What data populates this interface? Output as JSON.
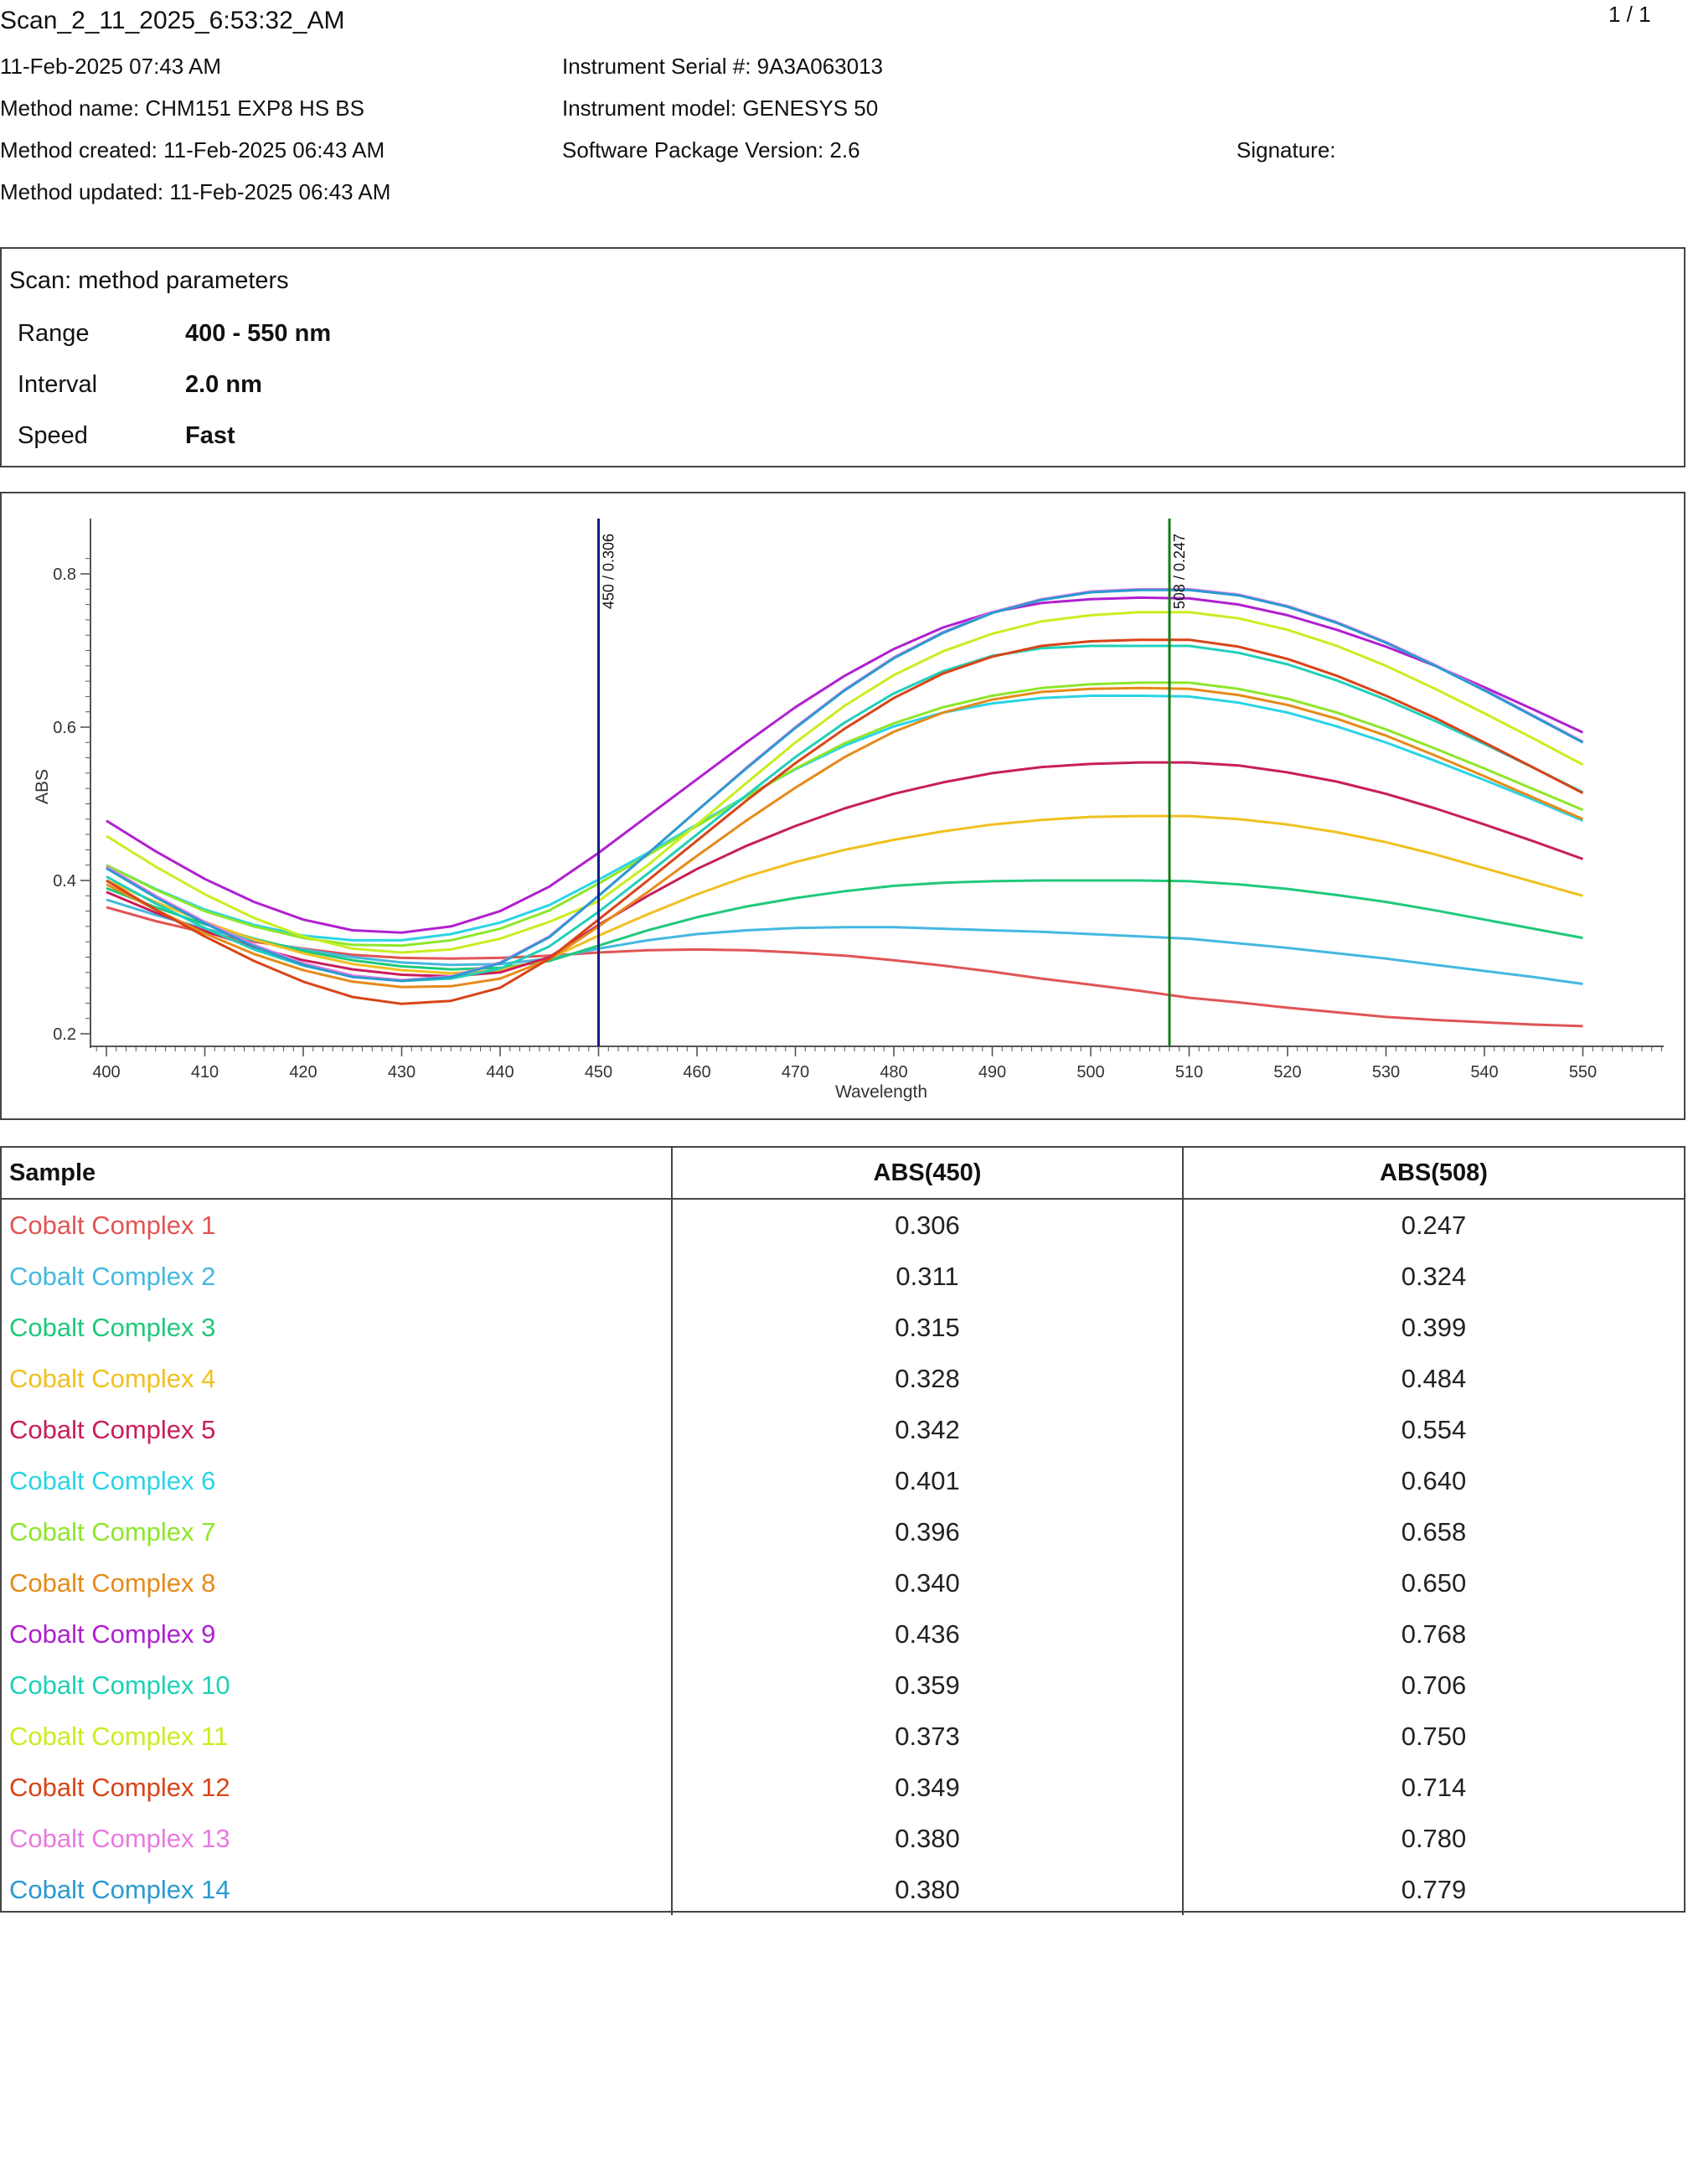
{
  "header": {
    "title": "Scan_2_11_2025_6:53:32_AM",
    "page": "1 / 1",
    "date": "11-Feb-2025 07:43 AM",
    "method_name": "Method name: CHM151 EXP8 HS BS",
    "method_created": "Method created: 11-Feb-2025 06:43 AM",
    "method_updated": "Method updated: 11-Feb-2025 06:43 AM",
    "serial": "Instrument Serial #: 9A3A063013",
    "model": "Instrument model: GENESYS 50",
    "software": "Software Package Version: 2.6",
    "signature": "Signature:"
  },
  "params": {
    "title": "Scan: method parameters",
    "rows": [
      {
        "label": "Range",
        "value": "400 - 550 nm"
      },
      {
        "label": "Interval",
        "value": "2.0 nm"
      },
      {
        "label": "Speed",
        "value": "Fast"
      }
    ]
  },
  "chart_data": {
    "type": "line",
    "xlabel": "Wavelength",
    "ylabel": "ABS",
    "xlim": [
      398.3,
      550
    ],
    "ylim": [
      0.2,
      0.8
    ],
    "xticks": [
      400,
      410,
      420,
      430,
      440,
      450,
      460,
      470,
      480,
      490,
      500,
      510,
      520,
      530,
      540,
      550
    ],
    "yticks": [
      0.2,
      0.4,
      0.6,
      0.8
    ],
    "x": [
      400,
      405,
      410,
      415,
      420,
      425,
      430,
      435,
      440,
      445,
      450,
      455,
      460,
      465,
      470,
      475,
      480,
      485,
      490,
      495,
      500,
      505,
      510,
      515,
      520,
      525,
      530,
      535,
      540,
      545,
      550
    ],
    "markers": [
      {
        "x": 450,
        "label": "450 / 0.306",
        "color": "#1a1a8c"
      },
      {
        "x": 508,
        "label": "508 / 0.247",
        "color": "#1a7a1a"
      }
    ],
    "series": [
      {
        "name": "Cobalt Complex 1",
        "color": "#e05555",
        "values": [
          0.365,
          0.347,
          0.332,
          0.32,
          0.311,
          0.303,
          0.299,
          0.298,
          0.299,
          0.302,
          0.306,
          0.309,
          0.31,
          0.309,
          0.306,
          0.302,
          0.296,
          0.289,
          0.281,
          0.272,
          0.264,
          0.256,
          0.247,
          0.241,
          0.234,
          0.228,
          0.222,
          0.218,
          0.215,
          0.212,
          0.21
        ]
      },
      {
        "name": "Cobalt Complex 2",
        "color": "#45b8e0",
        "values": [
          0.375,
          0.355,
          0.337,
          0.322,
          0.31,
          0.3,
          0.293,
          0.29,
          0.291,
          0.298,
          0.311,
          0.322,
          0.33,
          0.335,
          0.338,
          0.339,
          0.339,
          0.337,
          0.335,
          0.333,
          0.33,
          0.327,
          0.324,
          0.318,
          0.312,
          0.305,
          0.298,
          0.29,
          0.282,
          0.274,
          0.265
        ]
      },
      {
        "name": "Cobalt Complex 3",
        "color": "#1fc97a",
        "values": [
          0.39,
          0.365,
          0.343,
          0.324,
          0.308,
          0.296,
          0.288,
          0.284,
          0.286,
          0.295,
          0.315,
          0.335,
          0.352,
          0.366,
          0.377,
          0.386,
          0.393,
          0.397,
          0.399,
          0.4,
          0.4,
          0.4,
          0.399,
          0.395,
          0.389,
          0.381,
          0.372,
          0.361,
          0.349,
          0.337,
          0.325
        ]
      },
      {
        "name": "Cobalt Complex 4",
        "color": "#f0c020",
        "values": [
          0.4,
          0.372,
          0.346,
          0.323,
          0.305,
          0.291,
          0.283,
          0.279,
          0.283,
          0.298,
          0.328,
          0.356,
          0.382,
          0.405,
          0.424,
          0.44,
          0.453,
          0.464,
          0.473,
          0.479,
          0.483,
          0.484,
          0.484,
          0.48,
          0.473,
          0.463,
          0.45,
          0.434,
          0.416,
          0.398,
          0.38
        ]
      },
      {
        "name": "Cobalt Complex 5",
        "color": "#c81e5a",
        "values": [
          0.385,
          0.358,
          0.334,
          0.313,
          0.296,
          0.284,
          0.277,
          0.275,
          0.28,
          0.3,
          0.342,
          0.38,
          0.415,
          0.445,
          0.471,
          0.494,
          0.513,
          0.528,
          0.54,
          0.548,
          0.552,
          0.554,
          0.554,
          0.55,
          0.541,
          0.529,
          0.513,
          0.494,
          0.473,
          0.451,
          0.428
        ]
      },
      {
        "name": "Cobalt Complex 6",
        "color": "#2ad4e6",
        "values": [
          0.42,
          0.389,
          0.362,
          0.342,
          0.328,
          0.322,
          0.322,
          0.33,
          0.345,
          0.368,
          0.401,
          0.436,
          0.473,
          0.51,
          0.545,
          0.576,
          0.601,
          0.619,
          0.631,
          0.638,
          0.641,
          0.641,
          0.64,
          0.632,
          0.619,
          0.601,
          0.58,
          0.556,
          0.531,
          0.505,
          0.478
        ]
      },
      {
        "name": "Cobalt Complex 7",
        "color": "#8de62a",
        "values": [
          0.42,
          0.388,
          0.36,
          0.34,
          0.325,
          0.316,
          0.315,
          0.322,
          0.337,
          0.361,
          0.396,
          0.433,
          0.471,
          0.509,
          0.546,
          0.579,
          0.605,
          0.626,
          0.641,
          0.651,
          0.656,
          0.658,
          0.658,
          0.65,
          0.637,
          0.619,
          0.597,
          0.572,
          0.546,
          0.519,
          0.492
        ]
      },
      {
        "name": "Cobalt Complex 8",
        "color": "#e68a1a",
        "values": [
          0.395,
          0.362,
          0.331,
          0.304,
          0.283,
          0.268,
          0.261,
          0.262,
          0.272,
          0.297,
          0.34,
          0.385,
          0.432,
          0.478,
          0.521,
          0.561,
          0.594,
          0.619,
          0.636,
          0.646,
          0.65,
          0.651,
          0.65,
          0.642,
          0.629,
          0.611,
          0.589,
          0.563,
          0.536,
          0.508,
          0.48
        ]
      },
      {
        "name": "Cobalt Complex 9",
        "color": "#b020d0",
        "values": [
          0.478,
          0.438,
          0.402,
          0.372,
          0.349,
          0.335,
          0.332,
          0.34,
          0.36,
          0.392,
          0.436,
          0.484,
          0.532,
          0.58,
          0.626,
          0.667,
          0.702,
          0.73,
          0.75,
          0.762,
          0.767,
          0.769,
          0.768,
          0.76,
          0.746,
          0.727,
          0.705,
          0.68,
          0.652,
          0.623,
          0.593
        ]
      },
      {
        "name": "Cobalt Complex 10",
        "color": "#20d0b8",
        "values": [
          0.405,
          0.37,
          0.338,
          0.31,
          0.289,
          0.275,
          0.269,
          0.272,
          0.285,
          0.314,
          0.359,
          0.409,
          0.46,
          0.511,
          0.561,
          0.606,
          0.644,
          0.673,
          0.693,
          0.703,
          0.706,
          0.706,
          0.706,
          0.697,
          0.682,
          0.661,
          0.636,
          0.608,
          0.578,
          0.547,
          0.515
        ]
      },
      {
        "name": "Cobalt Complex 11",
        "color": "#c8ee20",
        "values": [
          0.458,
          0.418,
          0.382,
          0.351,
          0.327,
          0.311,
          0.306,
          0.31,
          0.324,
          0.346,
          0.373,
          0.42,
          0.473,
          0.527,
          0.58,
          0.628,
          0.668,
          0.699,
          0.722,
          0.738,
          0.746,
          0.75,
          0.75,
          0.742,
          0.727,
          0.706,
          0.68,
          0.65,
          0.618,
          0.585,
          0.551
        ]
      },
      {
        "name": "Cobalt Complex 12",
        "color": "#d84418",
        "values": [
          0.4,
          0.362,
          0.327,
          0.295,
          0.268,
          0.248,
          0.239,
          0.243,
          0.26,
          0.298,
          0.349,
          0.4,
          0.452,
          0.504,
          0.553,
          0.598,
          0.638,
          0.67,
          0.692,
          0.706,
          0.712,
          0.714,
          0.714,
          0.705,
          0.689,
          0.667,
          0.641,
          0.612,
          0.58,
          0.547,
          0.514
        ]
      },
      {
        "name": "Cobalt Complex 13",
        "color": "#e87ae0",
        "values": [
          0.418,
          0.38,
          0.346,
          0.316,
          0.292,
          0.276,
          0.27,
          0.275,
          0.293,
          0.327,
          0.38,
          0.435,
          0.491,
          0.547,
          0.6,
          0.649,
          0.691,
          0.724,
          0.75,
          0.767,
          0.777,
          0.78,
          0.78,
          0.773,
          0.758,
          0.737,
          0.711,
          0.681,
          0.649,
          0.615,
          0.581
        ]
      },
      {
        "name": "Cobalt Complex 14",
        "color": "#2a9ad0",
        "values": [
          0.416,
          0.378,
          0.344,
          0.314,
          0.29,
          0.274,
          0.269,
          0.274,
          0.292,
          0.326,
          0.38,
          0.435,
          0.491,
          0.546,
          0.599,
          0.648,
          0.69,
          0.723,
          0.749,
          0.766,
          0.776,
          0.779,
          0.779,
          0.772,
          0.757,
          0.736,
          0.71,
          0.68,
          0.648,
          0.614,
          0.58
        ]
      }
    ]
  },
  "table": {
    "headers": [
      "Sample",
      "ABS(450)",
      "ABS(508)"
    ],
    "rows": [
      {
        "name": "Cobalt Complex 1",
        "a450": "0.306",
        "a508": "0.247"
      },
      {
        "name": "Cobalt Complex 2",
        "a450": "0.311",
        "a508": "0.324"
      },
      {
        "name": "Cobalt Complex 3",
        "a450": "0.315",
        "a508": "0.399"
      },
      {
        "name": "Cobalt Complex 4",
        "a450": "0.328",
        "a508": "0.484"
      },
      {
        "name": "Cobalt Complex 5",
        "a450": "0.342",
        "a508": "0.554"
      },
      {
        "name": "Cobalt Complex 6",
        "a450": "0.401",
        "a508": "0.640"
      },
      {
        "name": "Cobalt Complex 7",
        "a450": "0.396",
        "a508": "0.658"
      },
      {
        "name": "Cobalt Complex 8",
        "a450": "0.340",
        "a508": "0.650"
      },
      {
        "name": "Cobalt Complex 9",
        "a450": "0.436",
        "a508": "0.768"
      },
      {
        "name": "Cobalt Complex 10",
        "a450": "0.359",
        "a508": "0.706"
      },
      {
        "name": "Cobalt Complex 11",
        "a450": "0.373",
        "a508": "0.750"
      },
      {
        "name": "Cobalt Complex 12",
        "a450": "0.349",
        "a508": "0.714"
      },
      {
        "name": "Cobalt Complex 13",
        "a450": "0.380",
        "a508": "0.780"
      },
      {
        "name": "Cobalt Complex 14",
        "a450": "0.380",
        "a508": "0.779"
      }
    ]
  }
}
